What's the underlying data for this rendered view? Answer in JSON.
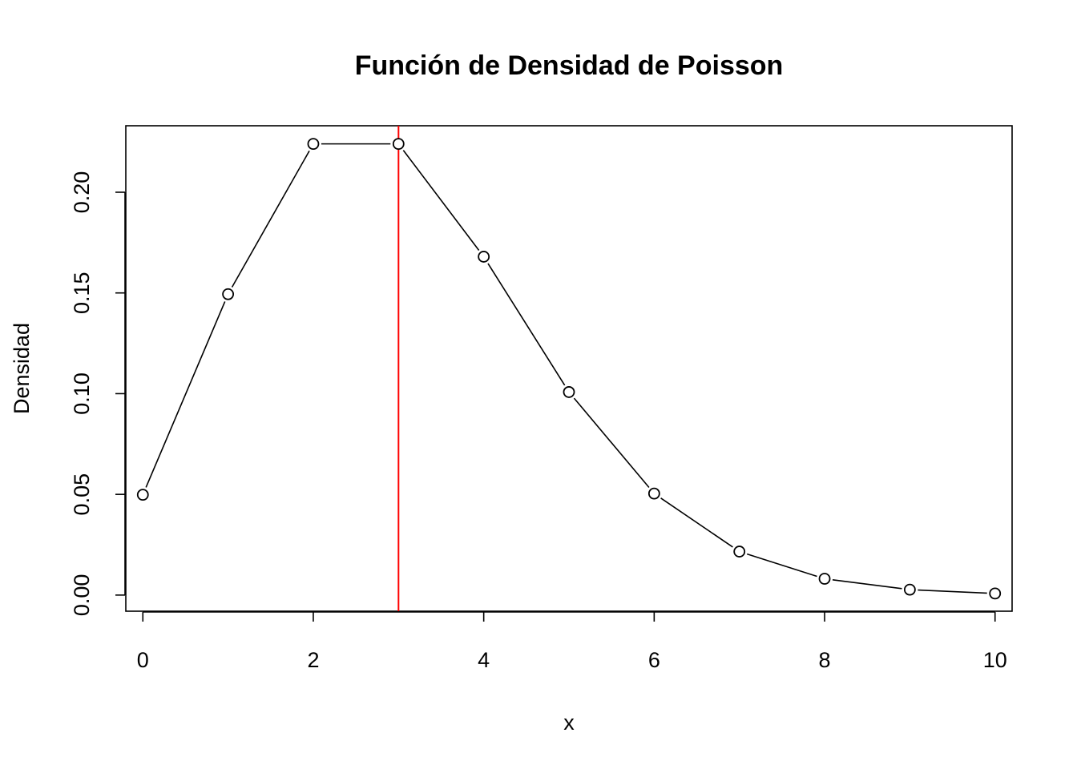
{
  "chart_data": {
    "type": "line",
    "title": "Función de Densidad de Poisson",
    "xlabel": "x",
    "ylabel": "Densidad",
    "x": [
      0,
      1,
      2,
      3,
      4,
      5,
      6,
      7,
      8,
      9,
      10
    ],
    "series": [
      {
        "values": [
          0.0498,
          0.1494,
          0.224,
          0.224,
          0.168,
          0.1008,
          0.0504,
          0.0216,
          0.0081,
          0.0027,
          0.0008
        ],
        "marker": "open-circle",
        "line_style": "points-and-lines",
        "color": "#000000"
      }
    ],
    "reference_line": {
      "orientation": "vertical",
      "x": 3,
      "color": "#ff0000"
    },
    "xlim": [
      -0.2,
      10.2
    ],
    "ylim": [
      -0.008,
      0.233
    ],
    "xticks": [
      0,
      2,
      4,
      6,
      8,
      10
    ],
    "xtick_labels": [
      "0",
      "2",
      "4",
      "6",
      "8",
      "10"
    ],
    "yticks": [
      0.0,
      0.05,
      0.1,
      0.15,
      0.2
    ],
    "ytick_labels": [
      "0.00",
      "0.05",
      "0.10",
      "0.15",
      "0.20"
    ],
    "grid": false,
    "legend": "none"
  }
}
